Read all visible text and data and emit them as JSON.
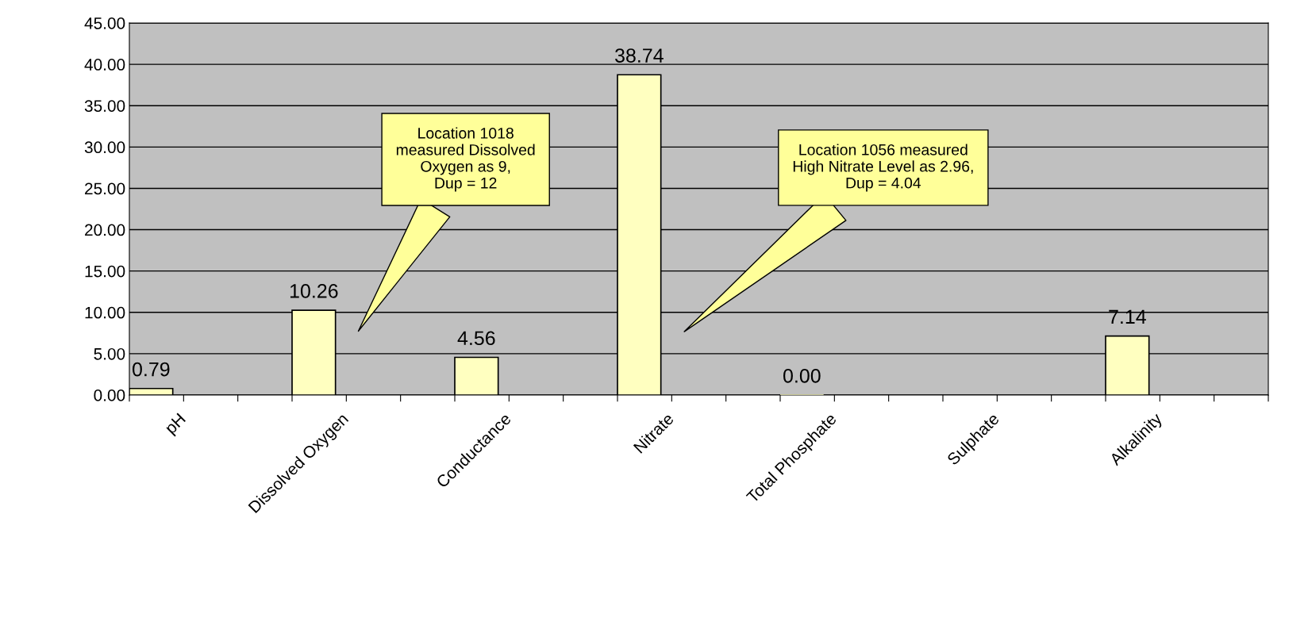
{
  "chart_data": {
    "type": "bar",
    "categories": [
      "pH",
      null,
      null,
      "Dissolved Oxygen",
      null,
      null,
      "Conductance",
      null,
      null,
      "Nitrate",
      null,
      null,
      "Total Phosphate",
      null,
      null,
      "Sulphate",
      null,
      null,
      "Alkalinity",
      null,
      null
    ],
    "values": [
      0.79,
      null,
      null,
      10.26,
      null,
      null,
      4.56,
      null,
      null,
      38.74,
      null,
      null,
      0.0,
      null,
      null,
      null,
      null,
      null,
      7.14,
      null,
      null
    ],
    "value_labels": [
      "0.79",
      null,
      null,
      "10.26",
      null,
      null,
      "4.56",
      null,
      null,
      "38.74",
      null,
      null,
      "0.00",
      null,
      null,
      null,
      null,
      null,
      "7.14",
      null,
      null
    ],
    "color": "#ffffc0",
    "ylim": [
      0,
      45
    ],
    "yticks": [
      {
        "value": 0,
        "label": "0.00"
      },
      {
        "value": 5,
        "label": "5.00"
      },
      {
        "value": 10,
        "label": "10.00"
      },
      {
        "value": 15,
        "label": "15.00"
      },
      {
        "value": 20,
        "label": "20.00"
      },
      {
        "value": 25,
        "label": "25.00"
      },
      {
        "value": 30,
        "label": "30.00"
      },
      {
        "value": 35,
        "label": "35.00"
      },
      {
        "value": 40,
        "label": "40.00"
      },
      {
        "value": 45,
        "label": "45.00"
      }
    ],
    "grid": "y",
    "annotations": [
      "Location 1018\nmeasured Dissolved\nOxygen as 9,\nDup = 12",
      "Location 1056 measured\nHigh Nitrate Level as 2.96,\nDup = 4.04"
    ]
  }
}
